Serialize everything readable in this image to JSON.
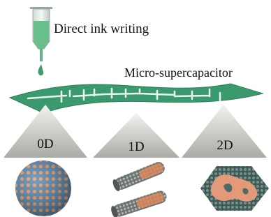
{
  "labels": {
    "process": "Direct ink writing",
    "device": "Micro-supercapacitor",
    "dimensions": [
      "0D",
      "1D",
      "2D"
    ]
  }
}
